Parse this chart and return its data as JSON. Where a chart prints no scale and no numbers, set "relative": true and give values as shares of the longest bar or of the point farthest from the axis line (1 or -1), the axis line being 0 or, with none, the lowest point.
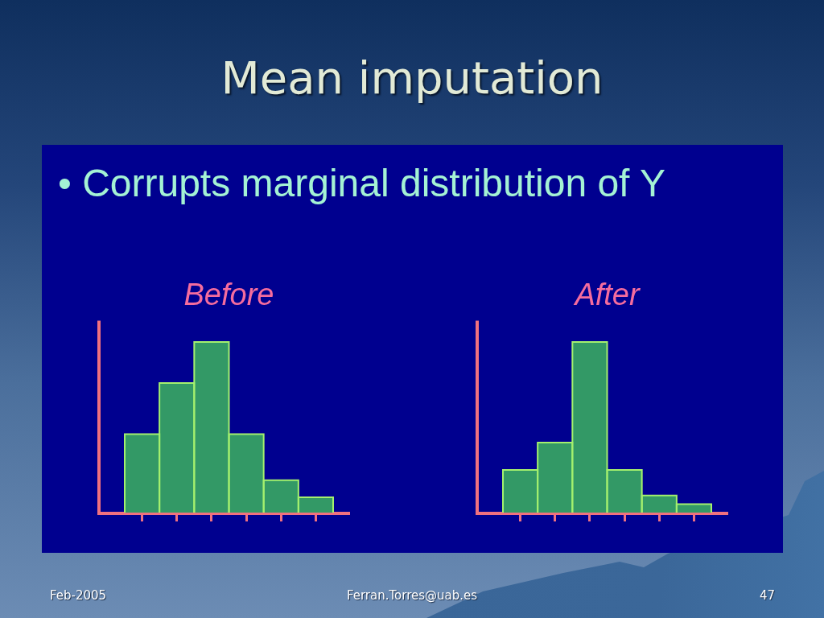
{
  "chart_data": [
    {
      "type": "other",
      "title": "Mean imputation",
      "subtitle": "• Corrupts marginal distribution of Y",
      "annotations": [
        "Feb-2005",
        "Ferran.Torres@uab.es",
        "47"
      ]
    },
    {
      "type": "bar",
      "title": "Before",
      "categories": [
        null,
        null,
        null,
        null,
        null,
        null
      ],
      "values": [
        0.46,
        0.76,
        1,
        0.46,
        0.19,
        0.09
      ],
      "color": "#339966",
      "relative": true,
      "tick_labels": false
    },
    {
      "type": "bar",
      "title": "After",
      "categories": [
        null,
        null,
        null,
        null,
        null,
        null
      ],
      "values": [
        0.25,
        0.41,
        1,
        0.25,
        0.1,
        0.05
      ],
      "color": "#339966",
      "relative": true,
      "tick_labels": false
    }
  ]
}
